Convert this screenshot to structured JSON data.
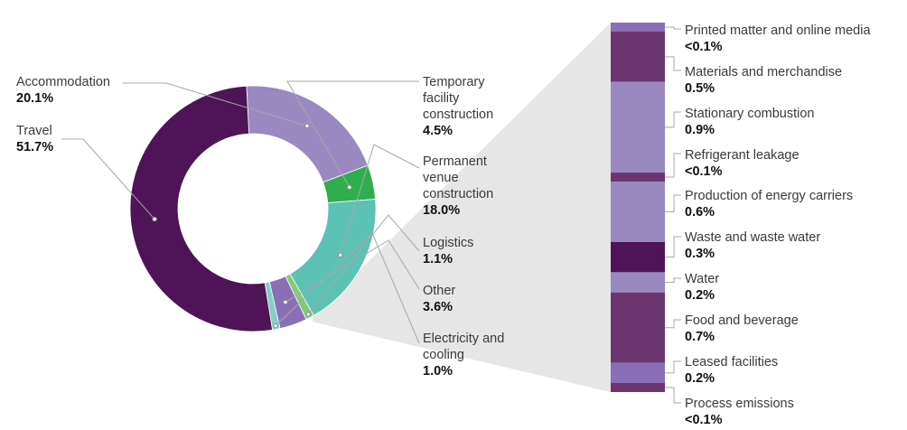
{
  "chart_data": [
    {
      "type": "pie",
      "style": "donut",
      "slices": [
        {
          "label": "Accommodation",
          "value_label": "20.1%",
          "value": 20.1,
          "color": "#9a88c0"
        },
        {
          "label": "Temporary facility construction",
          "value_label": "4.5%",
          "value": 4.5,
          "color": "#2fae4e"
        },
        {
          "label": "Permanent venue construction",
          "value_label": "18.0%",
          "value": 18.0,
          "color": "#5cc2b5"
        },
        {
          "label": "Logistics",
          "value_label": "1.1%",
          "value": 1.1,
          "color": "#86c97a"
        },
        {
          "label": "Other",
          "value_label": "3.6%",
          "value": 3.6,
          "color": "#8a6fb7"
        },
        {
          "label": "Electricity and cooling",
          "value_label": "1.0%",
          "value": 1.0,
          "color": "#7fd0c8"
        },
        {
          "label": "Travel",
          "value_label": "51.7%",
          "value": 51.7,
          "color": "#4e1457"
        }
      ]
    },
    {
      "type": "bar",
      "style": "stacked-column",
      "title": "",
      "segments": [
        {
          "label": "Printed matter and online media",
          "value_label": "<0.1%",
          "value": 0.05,
          "color": "#8a6fb7"
        },
        {
          "label": "Materials and merchandise",
          "value_label": "0.5%",
          "value": 0.5,
          "color": "#6b3670"
        },
        {
          "label": "Stationary combustion",
          "value_label": "0.9%",
          "value": 0.9,
          "color": "#9a88c0"
        },
        {
          "label": "Refrigerant leakage",
          "value_label": "<0.1%",
          "value": 0.05,
          "color": "#6b3670"
        },
        {
          "label": "Production of energy carriers",
          "value_label": "0.6%",
          "value": 0.6,
          "color": "#9a88c0"
        },
        {
          "label": "Waste and waste water",
          "value_label": "0.3%",
          "value": 0.3,
          "color": "#4e1457"
        },
        {
          "label": "Water",
          "value_label": "0.2%",
          "value": 0.2,
          "color": "#9a88c0"
        },
        {
          "label": "Food and beverage",
          "value_label": "0.7%",
          "value": 0.7,
          "color": "#6b3670"
        },
        {
          "label": "Leased facilities",
          "value_label": "0.2%",
          "value": 0.2,
          "color": "#8a6fb7"
        },
        {
          "label": "Process emissions",
          "value_label": "<0.1%",
          "value": 0.05,
          "color": "#6b3670"
        }
      ]
    }
  ]
}
